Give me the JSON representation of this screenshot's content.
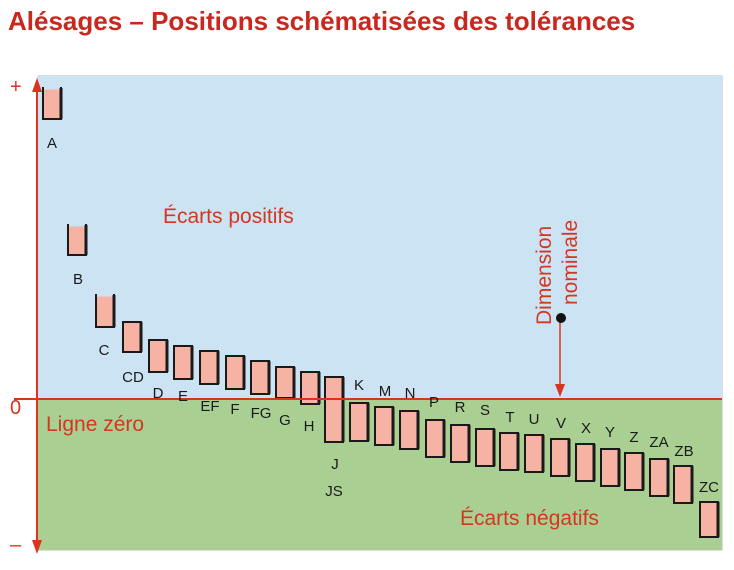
{
  "title": "Alésages – Positions schématisées des tolérances",
  "labels": {
    "positive_zone": "Écarts positifs",
    "negative_zone": "Écarts négatifs",
    "zero_line": "Ligne zéro",
    "nominal_line1": "Dimension",
    "nominal_line2": "nominale",
    "axis_plus": "+",
    "axis_zero": "0",
    "axis_minus": "–"
  },
  "colors": {
    "title": "#c8281e",
    "accent_red": "#d8351f",
    "positive_bg": "#cce3f3",
    "negative_bg": "#a9cf93",
    "box_fill": "#f6b2a2",
    "box_stroke": "#1a1a1a",
    "frame": "#bdbdbd"
  },
  "tolerance_positions": [
    {
      "name": "A"
    },
    {
      "name": "B"
    },
    {
      "name": "C"
    },
    {
      "name": "CD"
    },
    {
      "name": "D"
    },
    {
      "name": "E"
    },
    {
      "name": "EF"
    },
    {
      "name": "F"
    },
    {
      "name": "FG"
    },
    {
      "name": "G"
    },
    {
      "name": "H"
    },
    {
      "name": "J"
    },
    {
      "name": "JS"
    },
    {
      "name": "K"
    },
    {
      "name": "M"
    },
    {
      "name": "N"
    },
    {
      "name": "P"
    },
    {
      "name": "R"
    },
    {
      "name": "S"
    },
    {
      "name": "T"
    },
    {
      "name": "U"
    },
    {
      "name": "V"
    },
    {
      "name": "X"
    },
    {
      "name": "Y"
    },
    {
      "name": "Z"
    },
    {
      "name": "ZA"
    },
    {
      "name": "ZB"
    },
    {
      "name": "ZC"
    }
  ]
}
